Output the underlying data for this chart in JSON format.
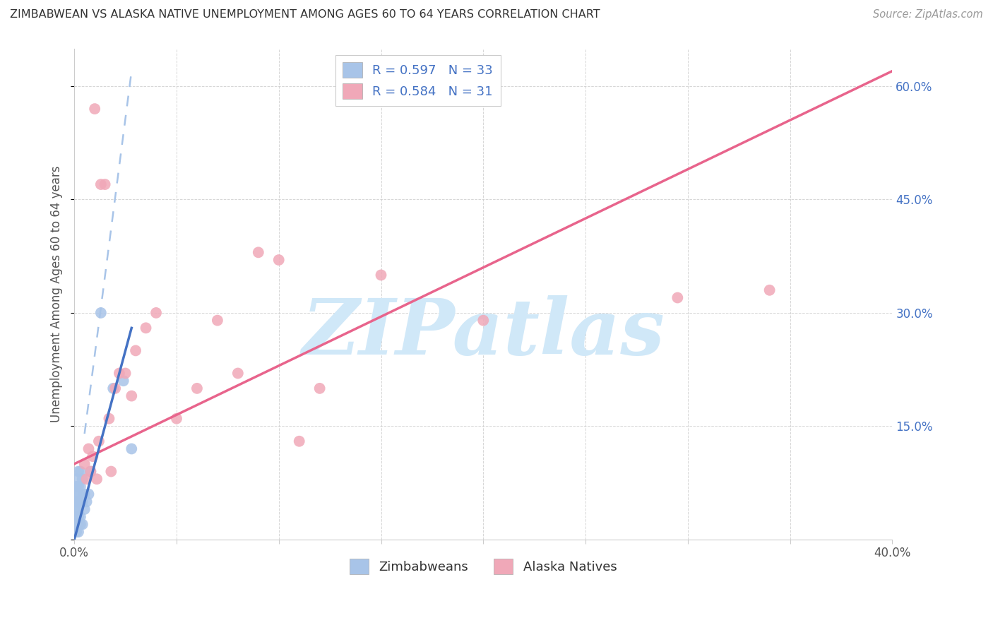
{
  "title": "ZIMBABWEAN VS ALASKA NATIVE UNEMPLOYMENT AMONG AGES 60 TO 64 YEARS CORRELATION CHART",
  "source": "Source: ZipAtlas.com",
  "ylabel": "Unemployment Among Ages 60 to 64 years",
  "xlabel_zimbabweans": "Zimbabweans",
  "xlabel_alaska": "Alaska Natives",
  "xlim": [
    0.0,
    0.4
  ],
  "ylim": [
    0.0,
    0.65
  ],
  "xtick_positions": [
    0.0,
    0.05,
    0.1,
    0.15,
    0.2,
    0.25,
    0.3,
    0.35,
    0.4
  ],
  "xtick_labels": [
    "0.0%",
    "",
    "",
    "",
    "",
    "",
    "",
    "",
    "40.0%"
  ],
  "ytick_positions": [
    0.0,
    0.15,
    0.3,
    0.45,
    0.6
  ],
  "ytick_labels": [
    "",
    "15.0%",
    "30.0%",
    "45.0%",
    "60.0%"
  ],
  "legend_R1": "R = 0.597",
  "legend_N1": "N = 33",
  "legend_R2": "R = 0.584",
  "legend_N2": "N = 31",
  "blue_dot_color": "#a8c4e8",
  "pink_dot_color": "#f0a8b8",
  "blue_line_color": "#4472c4",
  "pink_line_color": "#e8648c",
  "watermark_color": "#d0e8f8",
  "watermark": "ZIPatlas",
  "background_color": "#ffffff",
  "grid_color": "#cccccc",
  "right_tick_color": "#4472c4",
  "title_color": "#333333",
  "source_color": "#999999",
  "ylabel_color": "#555555",
  "zimbabweans_x": [
    0.001,
    0.001,
    0.001,
    0.001,
    0.001,
    0.001,
    0.001,
    0.001,
    0.002,
    0.002,
    0.002,
    0.002,
    0.002,
    0.002,
    0.002,
    0.002,
    0.003,
    0.003,
    0.003,
    0.003,
    0.003,
    0.004,
    0.004,
    0.004,
    0.005,
    0.005,
    0.006,
    0.007,
    0.008,
    0.013,
    0.019,
    0.024,
    0.028
  ],
  "zimbabweans_y": [
    0.01,
    0.02,
    0.03,
    0.04,
    0.05,
    0.06,
    0.07,
    0.08,
    0.01,
    0.02,
    0.03,
    0.04,
    0.05,
    0.06,
    0.07,
    0.09,
    0.02,
    0.03,
    0.05,
    0.07,
    0.09,
    0.02,
    0.05,
    0.08,
    0.04,
    0.06,
    0.05,
    0.06,
    0.09,
    0.3,
    0.2,
    0.21,
    0.12
  ],
  "alaska_x": [
    0.005,
    0.006,
    0.007,
    0.008,
    0.009,
    0.01,
    0.011,
    0.012,
    0.013,
    0.015,
    0.017,
    0.018,
    0.02,
    0.022,
    0.025,
    0.028,
    0.03,
    0.035,
    0.04,
    0.05,
    0.06,
    0.07,
    0.08,
    0.09,
    0.1,
    0.11,
    0.12,
    0.15,
    0.2,
    0.295,
    0.34
  ],
  "alaska_y": [
    0.1,
    0.08,
    0.12,
    0.09,
    0.11,
    0.57,
    0.08,
    0.13,
    0.47,
    0.47,
    0.16,
    0.09,
    0.2,
    0.22,
    0.22,
    0.19,
    0.25,
    0.28,
    0.3,
    0.16,
    0.2,
    0.29,
    0.22,
    0.38,
    0.37,
    0.13,
    0.2,
    0.35,
    0.29,
    0.32,
    0.33
  ],
  "pink_line_x0": 0.0,
  "pink_line_y0": 0.1,
  "pink_line_x1": 0.4,
  "pink_line_y1": 0.62,
  "blue_solid_line_x0": 0.0,
  "blue_solid_line_y0": 0.0,
  "blue_solid_line_x1": 0.028,
  "blue_solid_line_y1": 0.28,
  "blue_dashed_line_x0": 0.005,
  "blue_dashed_line_y0": 0.14,
  "blue_dashed_line_x1": 0.028,
  "blue_dashed_line_y1": 0.62
}
